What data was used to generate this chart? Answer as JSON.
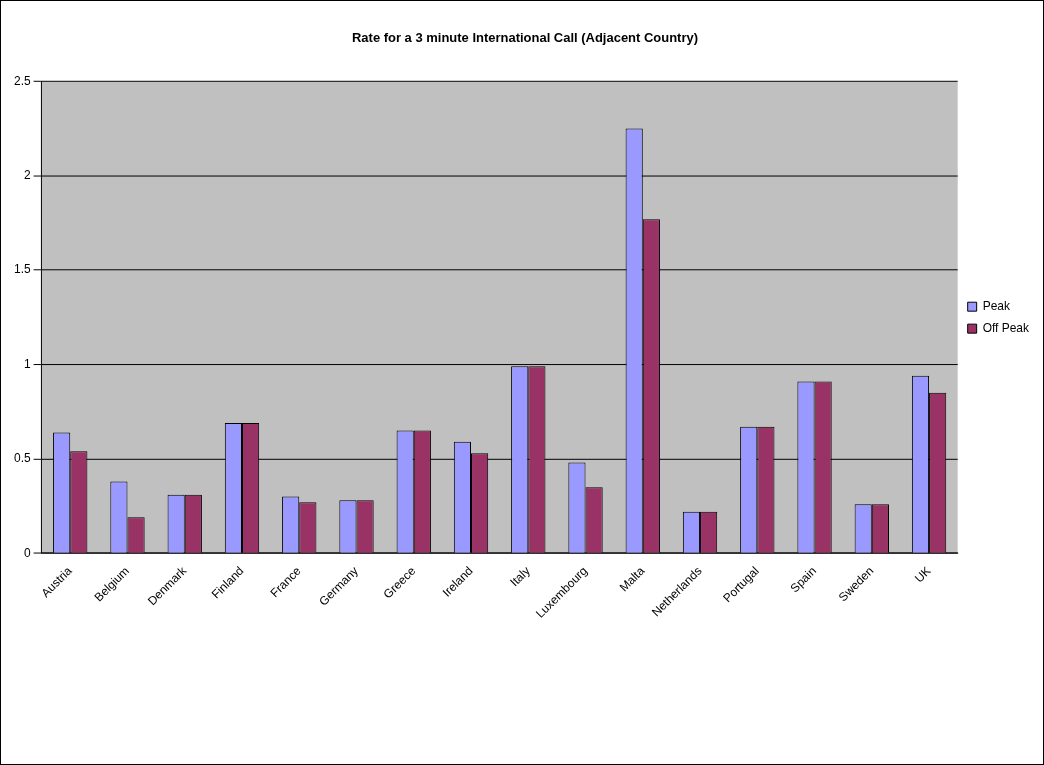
{
  "chart_data": {
    "type": "bar",
    "title": "Rate for a 3 minute International Call (Adjacent Country)",
    "categories": [
      "Austria",
      "Belgium",
      "Denmark",
      "Finland",
      "France",
      "Germany",
      "Greece",
      "Ireland",
      "Italy",
      "Luxembourg",
      "Malta",
      "Netherlands",
      "Portugal",
      "Spain",
      "Sweden",
      "UK"
    ],
    "series": [
      {
        "name": "Peak",
        "color": "#9999ff",
        "values": [
          0.64,
          0.38,
          0.31,
          0.69,
          0.3,
          0.28,
          0.65,
          0.59,
          0.99,
          0.48,
          2.25,
          0.22,
          0.67,
          0.91,
          0.26,
          0.94
        ]
      },
      {
        "name": "Off Peak",
        "color": "#993366",
        "values": [
          0.54,
          0.19,
          0.31,
          0.69,
          0.27,
          0.28,
          0.65,
          0.53,
          0.99,
          0.35,
          1.77,
          0.22,
          0.67,
          0.91,
          0.26,
          0.85
        ]
      }
    ],
    "ylim": [
      0,
      2.5
    ],
    "yticks": [
      0,
      0.5,
      1,
      1.5,
      2,
      2.5
    ],
    "grid": "y",
    "legend": "right"
  }
}
